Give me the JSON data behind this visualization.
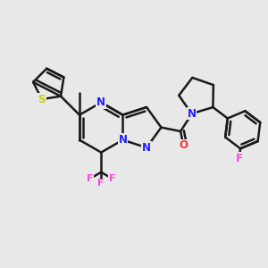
{
  "bg_color": "#e8e8e8",
  "bond_color": "#1a1a1a",
  "bond_width": 1.8,
  "atom_colors": {
    "N": "#2020ff",
    "S": "#cccc00",
    "O": "#ff3333",
    "F": "#ff44dd",
    "C": "#1a1a1a"
  },
  "font_size": 8.5,
  "fig_width": 3.0,
  "fig_height": 3.0,
  "dpi": 100
}
